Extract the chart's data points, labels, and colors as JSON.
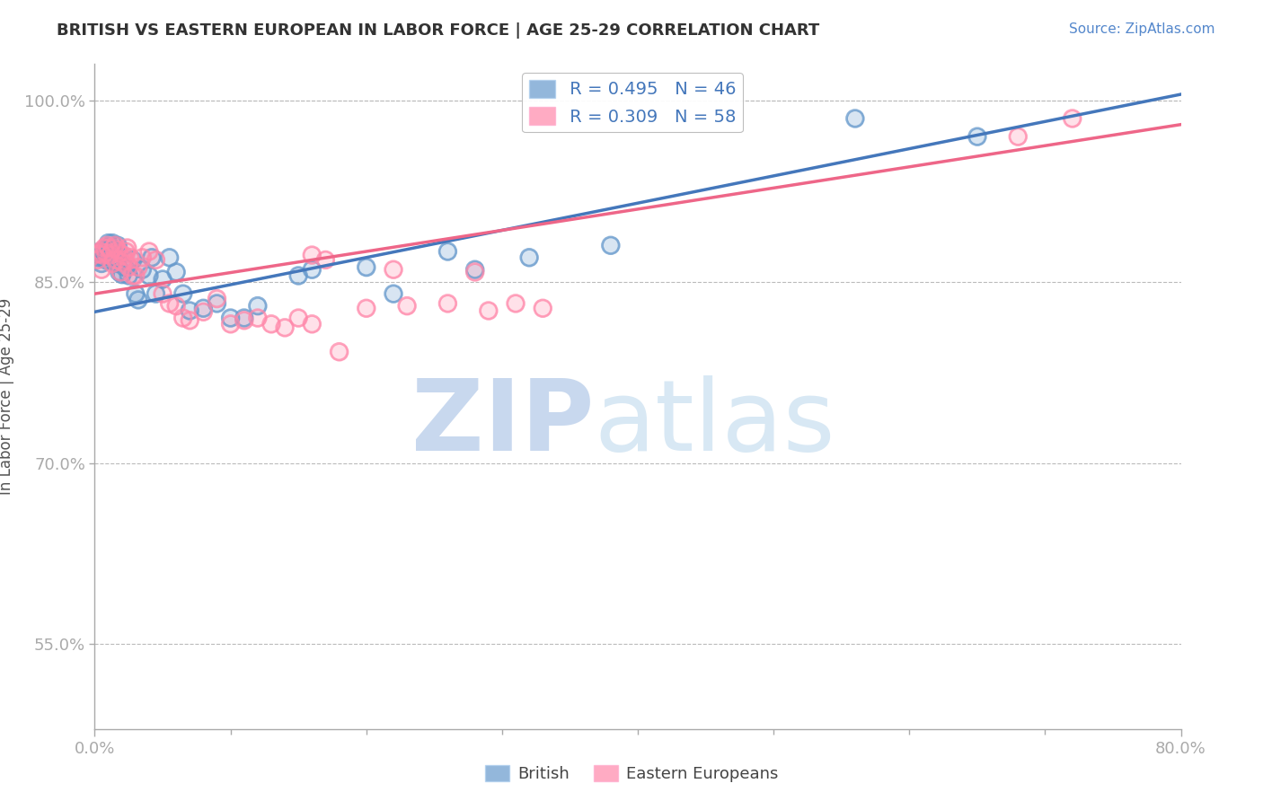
{
  "title": "BRITISH VS EASTERN EUROPEAN IN LABOR FORCE | AGE 25-29 CORRELATION CHART",
  "source_text": "Source: ZipAtlas.com",
  "ylabel": "In Labor Force | Age 25-29",
  "xlim": [
    0.0,
    0.8
  ],
  "ylim": [
    0.48,
    1.03
  ],
  "yticks": [
    0.55,
    0.7,
    0.85,
    1.0
  ],
  "ytick_labels": [
    "55.0%",
    "70.0%",
    "85.0%",
    "100.0%"
  ],
  "xticks": [
    0.0,
    0.8
  ],
  "xtick_labels": [
    "0.0%",
    "80.0%"
  ],
  "legend_labels": [
    "British",
    "Eastern Europeans"
  ],
  "blue_R": 0.495,
  "blue_N": 46,
  "pink_R": 0.309,
  "pink_N": 58,
  "blue_color": "#6699CC",
  "pink_color": "#FF88AA",
  "blue_line_color": "#4477BB",
  "pink_line_color": "#EE6688",
  "blue_x": [
    0.003,
    0.004,
    0.005,
    0.006,
    0.007,
    0.008,
    0.009,
    0.01,
    0.011,
    0.012,
    0.013,
    0.014,
    0.015,
    0.016,
    0.017,
    0.018,
    0.02,
    0.022,
    0.025,
    0.028,
    0.03,
    0.032,
    0.035,
    0.04,
    0.042,
    0.045,
    0.05,
    0.055,
    0.06,
    0.065,
    0.07,
    0.08,
    0.09,
    0.1,
    0.11,
    0.12,
    0.15,
    0.16,
    0.2,
    0.22,
    0.26,
    0.28,
    0.32,
    0.38,
    0.56,
    0.65
  ],
  "blue_y": [
    0.87,
    0.875,
    0.865,
    0.87,
    0.872,
    0.868,
    0.876,
    0.882,
    0.879,
    0.874,
    0.882,
    0.876,
    0.87,
    0.865,
    0.88,
    0.858,
    0.856,
    0.862,
    0.855,
    0.868,
    0.84,
    0.835,
    0.86,
    0.855,
    0.87,
    0.84,
    0.852,
    0.87,
    0.858,
    0.84,
    0.826,
    0.828,
    0.832,
    0.82,
    0.82,
    0.83,
    0.855,
    0.86,
    0.862,
    0.84,
    0.875,
    0.86,
    0.87,
    0.88,
    0.985,
    0.97
  ],
  "pink_x": [
    0.002,
    0.003,
    0.004,
    0.005,
    0.006,
    0.007,
    0.008,
    0.009,
    0.01,
    0.011,
    0.012,
    0.013,
    0.014,
    0.015,
    0.016,
    0.017,
    0.018,
    0.019,
    0.02,
    0.021,
    0.022,
    0.023,
    0.024,
    0.025,
    0.026,
    0.028,
    0.03,
    0.032,
    0.035,
    0.04,
    0.045,
    0.05,
    0.055,
    0.06,
    0.065,
    0.07,
    0.08,
    0.09,
    0.1,
    0.11,
    0.12,
    0.13,
    0.14,
    0.15,
    0.16,
    0.18,
    0.2,
    0.23,
    0.26,
    0.29,
    0.31,
    0.33,
    0.16,
    0.17,
    0.22,
    0.28,
    0.68,
    0.72
  ],
  "pink_y": [
    0.868,
    0.873,
    0.875,
    0.86,
    0.872,
    0.878,
    0.874,
    0.88,
    0.878,
    0.872,
    0.874,
    0.865,
    0.878,
    0.88,
    0.868,
    0.876,
    0.874,
    0.858,
    0.866,
    0.872,
    0.868,
    0.875,
    0.878,
    0.862,
    0.87,
    0.855,
    0.855,
    0.862,
    0.87,
    0.875,
    0.868,
    0.84,
    0.832,
    0.83,
    0.82,
    0.818,
    0.825,
    0.836,
    0.815,
    0.818,
    0.82,
    0.815,
    0.812,
    0.82,
    0.815,
    0.792,
    0.828,
    0.83,
    0.832,
    0.826,
    0.832,
    0.828,
    0.872,
    0.868,
    0.86,
    0.858,
    0.97,
    0.985
  ],
  "watermark_zip": "ZIP",
  "watermark_atlas": "atlas",
  "background_color": "#FFFFFF",
  "grid_color": "#BBBBBB"
}
